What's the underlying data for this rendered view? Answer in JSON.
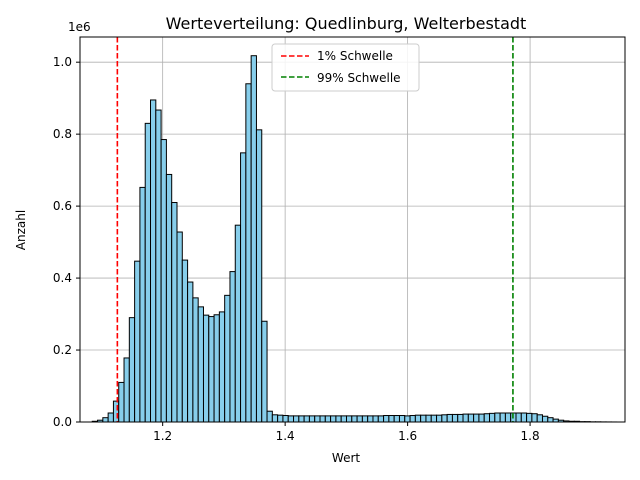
{
  "chart_data": {
    "type": "bar",
    "title": "Werteverteilung: Quedlinburg, Welterbestadt",
    "xlabel": "Wert",
    "ylabel": "Anzahl",
    "y_scale_label": "1e6",
    "xlim": [
      1.065,
      1.955
    ],
    "ylim": [
      0,
      1.07
    ],
    "x_ticks": [
      1.2,
      1.4,
      1.6,
      1.8
    ],
    "x_tick_labels": [
      "1.2",
      "1.4",
      "1.6",
      "1.8"
    ],
    "y_ticks": [
      0,
      0.2,
      0.4,
      0.6,
      0.8,
      1.0
    ],
    "y_tick_labels": [
      "0.0",
      "0.2",
      "0.4",
      "0.6",
      "0.8",
      "1.0"
    ],
    "grid": true,
    "legend_position": "top-center",
    "bar_color": "#87ceeb",
    "bar_edge_color": "#000000",
    "bins": {
      "start": 1.085,
      "width": 0.00865,
      "values": [
        0.002,
        0.005,
        0.012,
        0.025,
        0.058,
        0.11,
        0.178,
        0.29,
        0.447,
        0.652,
        0.83,
        0.895,
        0.867,
        0.785,
        0.688,
        0.61,
        0.528,
        0.45,
        0.389,
        0.345,
        0.32,
        0.297,
        0.293,
        0.298,
        0.306,
        0.352,
        0.418,
        0.547,
        0.748,
        0.94,
        1.018,
        0.812,
        0.28,
        0.03,
        0.02,
        0.019,
        0.018,
        0.017,
        0.017,
        0.017,
        0.017,
        0.017,
        0.017,
        0.017,
        0.017,
        0.017,
        0.017,
        0.017,
        0.017,
        0.017,
        0.017,
        0.017,
        0.017,
        0.017,
        0.017,
        0.018,
        0.018,
        0.018,
        0.018,
        0.017,
        0.018,
        0.019,
        0.019,
        0.019,
        0.019,
        0.019,
        0.02,
        0.021,
        0.021,
        0.021,
        0.022,
        0.022,
        0.022,
        0.022,
        0.023,
        0.024,
        0.025,
        0.025,
        0.025,
        0.025,
        0.025,
        0.025,
        0.024,
        0.023,
        0.02,
        0.016,
        0.012,
        0.008,
        0.005,
        0.003,
        0.002,
        0.002,
        0.001,
        0.001,
        0.0005,
        0.0005,
        0.0003,
        0.0002,
        0.0001
      ]
    },
    "threshold_lines": [
      {
        "name": "1% Schwelle",
        "x": 1.126,
        "color": "#ff0000",
        "style": "dashed"
      },
      {
        "name": "99% Schwelle",
        "x": 1.772,
        "color": "#008000",
        "style": "dashed"
      }
    ]
  }
}
